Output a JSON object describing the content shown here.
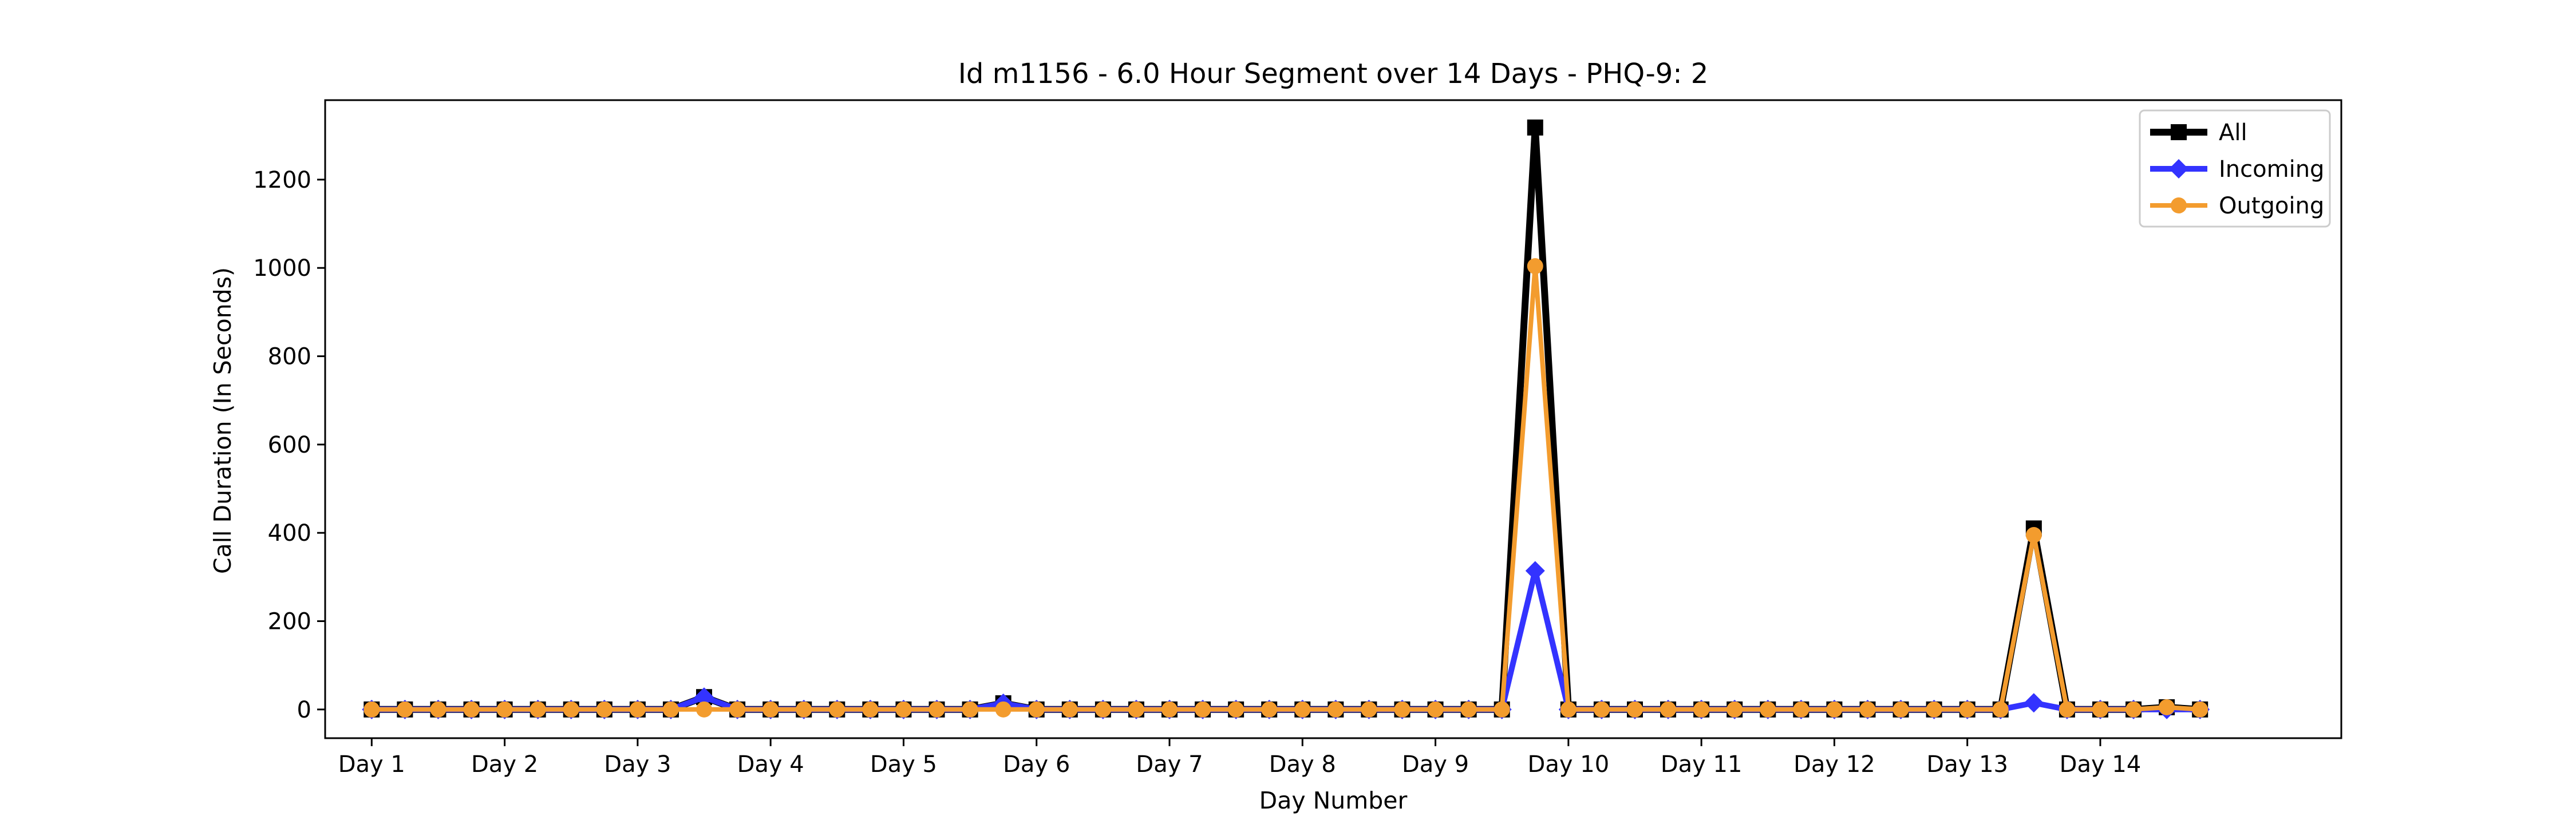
{
  "chart_data": {
    "type": "line",
    "title": "Id m1156 - 6.0 Hour Segment over 14 Days - PHQ-9: 2",
    "xlabel": "Day Number",
    "ylabel": "Call Duration (In Seconds)",
    "x_ticks": [
      "Day 1",
      "Day 2",
      "Day 3",
      "Day 4",
      "Day 5",
      "Day 6",
      "Day 7",
      "Day 8",
      "Day 9",
      "Day 10",
      "Day 11",
      "Day 12",
      "Day 13",
      "Day 14"
    ],
    "y_ticks": [
      0,
      200,
      400,
      600,
      800,
      1000,
      1200
    ],
    "xlim": [
      -1.4,
      59.25
    ],
    "ylim": [
      -65,
      1380
    ],
    "legend_position": "top-right",
    "grid": false,
    "x": [
      0,
      1,
      2,
      3,
      4,
      5,
      6,
      7,
      8,
      9,
      10,
      11,
      12,
      13,
      14,
      15,
      16,
      17,
      18,
      19,
      20,
      21,
      22,
      23,
      24,
      25,
      26,
      27,
      28,
      29,
      30,
      31,
      32,
      33,
      34,
      35,
      36,
      37,
      38,
      39,
      40,
      41,
      42,
      43,
      44,
      45,
      46,
      47,
      48,
      49,
      50,
      51,
      52,
      53,
      54,
      55
    ],
    "series": [
      {
        "name": "All",
        "color": "#000000",
        "marker": "square",
        "values": [
          0,
          0,
          0,
          0,
          0,
          0,
          0,
          0,
          0,
          0,
          28,
          0,
          0,
          0,
          0,
          0,
          0,
          0,
          0,
          14,
          0,
          0,
          0,
          0,
          0,
          0,
          0,
          0,
          0,
          0,
          0,
          0,
          0,
          0,
          0,
          1318,
          0,
          0,
          0,
          0,
          0,
          0,
          0,
          0,
          0,
          0,
          0,
          0,
          0,
          0,
          410,
          0,
          0,
          0,
          5,
          0
        ]
      },
      {
        "name": "Incoming",
        "color": "#3333ff",
        "marker": "diamond",
        "values": [
          0,
          0,
          0,
          0,
          0,
          0,
          0,
          0,
          0,
          0,
          28,
          0,
          0,
          0,
          0,
          0,
          0,
          0,
          0,
          14,
          0,
          0,
          0,
          0,
          0,
          0,
          0,
          0,
          0,
          0,
          0,
          0,
          0,
          0,
          0,
          314,
          0,
          0,
          0,
          0,
          0,
          0,
          0,
          0,
          0,
          0,
          0,
          0,
          0,
          0,
          15,
          0,
          0,
          0,
          0,
          0
        ]
      },
      {
        "name": "Outgoing",
        "color": "#f39c2e",
        "marker": "circle",
        "values": [
          0,
          0,
          0,
          0,
          0,
          0,
          0,
          0,
          0,
          0,
          0,
          0,
          0,
          0,
          0,
          0,
          0,
          0,
          0,
          0,
          0,
          0,
          0,
          0,
          0,
          0,
          0,
          0,
          0,
          0,
          0,
          0,
          0,
          0,
          0,
          1004,
          0,
          0,
          0,
          0,
          0,
          0,
          0,
          0,
          0,
          0,
          0,
          0,
          0,
          0,
          395,
          0,
          0,
          0,
          5,
          0
        ]
      }
    ]
  }
}
